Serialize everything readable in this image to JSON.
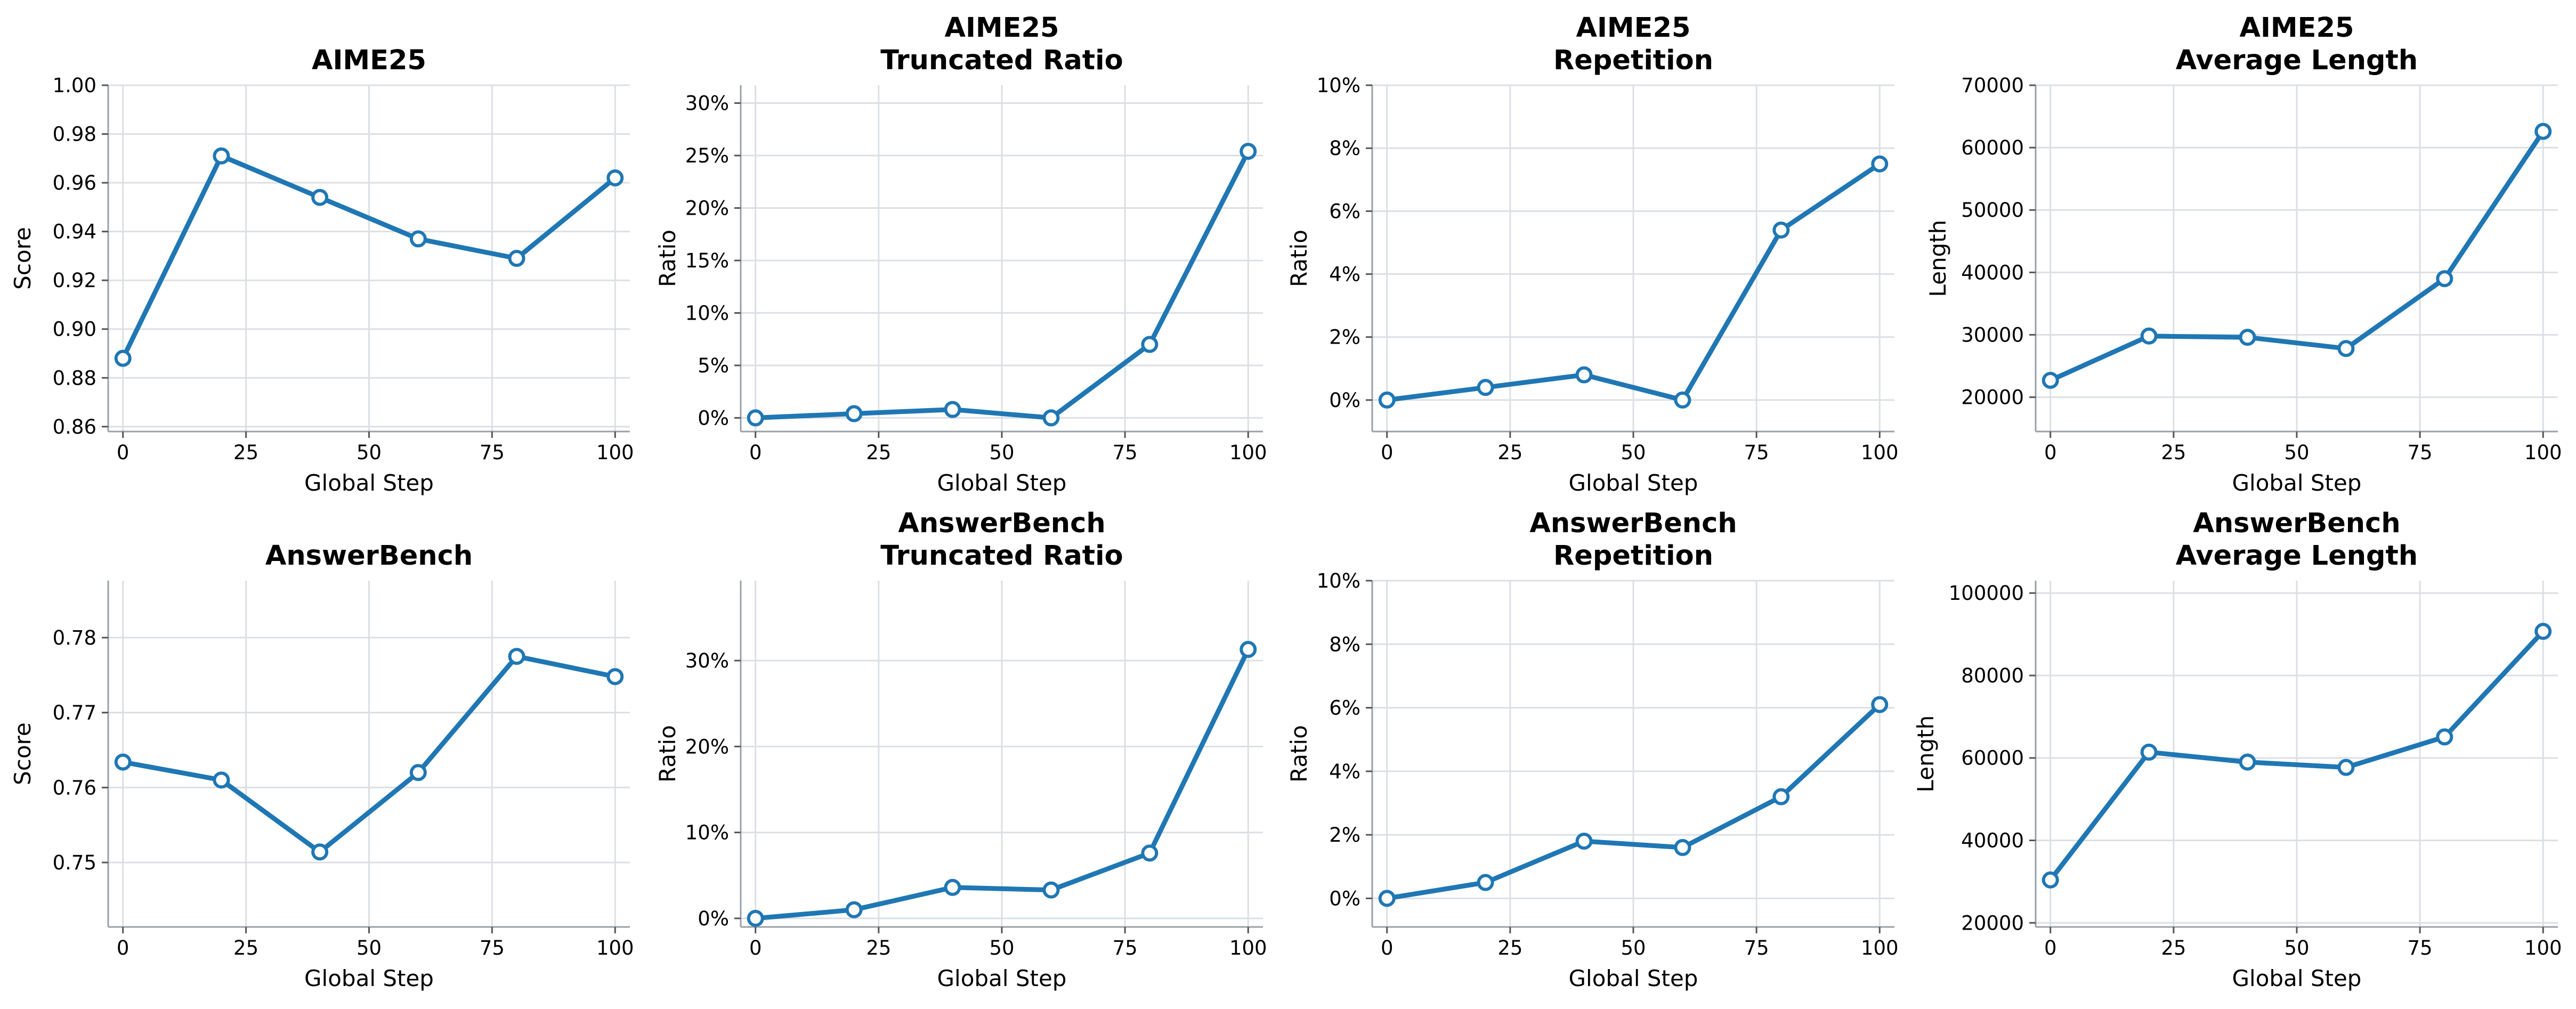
{
  "colors": {
    "series": "#1f77b4"
  },
  "chart_data": [
    {
      "type": "line",
      "title": [
        "AIME25"
      ],
      "xlabel": "Global Step",
      "ylabel": "Score",
      "x": [
        0,
        20,
        40,
        60,
        80,
        100
      ],
      "values": [
        0.888,
        0.971,
        0.954,
        0.937,
        0.929,
        0.962
      ],
      "xlim": [
        -3,
        103
      ],
      "ylim": [
        0.858,
        1.0
      ],
      "xticks": [
        0,
        25,
        50,
        75,
        100
      ],
      "xtick_labels": [
        "0",
        "25",
        "50",
        "75",
        "100"
      ],
      "yticks": [
        0.86,
        0.88,
        0.9,
        0.92,
        0.94,
        0.96,
        0.98,
        1.0
      ],
      "ytick_labels": [
        "0.86",
        "0.88",
        "0.90",
        "0.92",
        "0.94",
        "0.96",
        "0.98",
        "1.00"
      ],
      "grid": true
    },
    {
      "type": "line",
      "title": [
        "AIME25",
        "Truncated Ratio"
      ],
      "xlabel": "Global Step",
      "ylabel": "Ratio",
      "x": [
        0,
        20,
        40,
        60,
        80,
        100
      ],
      "values": [
        0.0,
        0.4,
        0.8,
        0.0,
        7.0,
        25.4
      ],
      "xlim": [
        -3,
        103
      ],
      "ylim": [
        -1.3,
        31.7
      ],
      "xticks": [
        0,
        25,
        50,
        75,
        100
      ],
      "xtick_labels": [
        "0",
        "25",
        "50",
        "75",
        "100"
      ],
      "yticks": [
        0,
        5,
        10,
        15,
        20,
        25,
        30
      ],
      "ytick_labels": [
        "0%",
        "5%",
        "10%",
        "15%",
        "20%",
        "25%",
        "30%"
      ],
      "grid": true
    },
    {
      "type": "line",
      "title": [
        "AIME25",
        "Repetition"
      ],
      "xlabel": "Global Step",
      "ylabel": "Ratio",
      "x": [
        0,
        20,
        40,
        60,
        80,
        100
      ],
      "values": [
        0.0,
        0.4,
        0.8,
        0.0,
        5.4,
        7.5
      ],
      "xlim": [
        -3,
        103
      ],
      "ylim": [
        -1.0,
        10.0
      ],
      "xticks": [
        0,
        25,
        50,
        75,
        100
      ],
      "xtick_labels": [
        "0",
        "25",
        "50",
        "75",
        "100"
      ],
      "yticks": [
        0,
        2,
        4,
        6,
        8,
        10
      ],
      "ytick_labels": [
        "0%",
        "2%",
        "4%",
        "6%",
        "8%",
        "10%"
      ],
      "grid": true
    },
    {
      "type": "line",
      "title": [
        "AIME25",
        "Average Length"
      ],
      "xlabel": "Global Step",
      "ylabel": "Length",
      "x": [
        0,
        20,
        40,
        60,
        80,
        100
      ],
      "values": [
        22700,
        29800,
        29600,
        27800,
        39000,
        62600
      ],
      "xlim": [
        -3,
        103
      ],
      "ylim": [
        14500,
        70000
      ],
      "xticks": [
        0,
        25,
        50,
        75,
        100
      ],
      "xtick_labels": [
        "0",
        "25",
        "50",
        "75",
        "100"
      ],
      "yticks": [
        20000,
        30000,
        40000,
        50000,
        60000,
        70000
      ],
      "ytick_labels": [
        "20000",
        "30000",
        "40000",
        "50000",
        "60000",
        "70000"
      ],
      "grid": true
    },
    {
      "type": "line",
      "title": [
        "AnswerBench"
      ],
      "xlabel": "Global Step",
      "ylabel": "Score",
      "x": [
        0,
        20,
        40,
        60,
        80,
        100
      ],
      "values": [
        0.7634,
        0.761,
        0.7514,
        0.762,
        0.7775,
        0.7748
      ],
      "xlim": [
        -3,
        103
      ],
      "ylim": [
        0.7414,
        0.7876
      ],
      "xticks": [
        0,
        25,
        50,
        75,
        100
      ],
      "xtick_labels": [
        "0",
        "25",
        "50",
        "75",
        "100"
      ],
      "yticks": [
        0.75,
        0.76,
        0.77,
        0.78
      ],
      "ytick_labels": [
        "0.75",
        "0.76",
        "0.77",
        "0.78"
      ],
      "grid": true
    },
    {
      "type": "line",
      "title": [
        "AnswerBench",
        "Truncated Ratio"
      ],
      "xlabel": "Global Step",
      "ylabel": "Ratio",
      "x": [
        0,
        20,
        40,
        60,
        80,
        100
      ],
      "values": [
        0.0,
        1.0,
        3.6,
        3.3,
        7.6,
        31.3
      ],
      "xlim": [
        -3,
        103
      ],
      "ylim": [
        -1.0,
        39.3
      ],
      "xticks": [
        0,
        25,
        50,
        75,
        100
      ],
      "xtick_labels": [
        "0",
        "25",
        "50",
        "75",
        "100"
      ],
      "yticks": [
        0,
        10,
        20,
        30
      ],
      "ytick_labels": [
        "0%",
        "10%",
        "20%",
        "30%"
      ],
      "grid": true
    },
    {
      "type": "line",
      "title": [
        "AnswerBench",
        "Repetition"
      ],
      "xlabel": "Global Step",
      "ylabel": "Ratio",
      "x": [
        0,
        20,
        40,
        60,
        80,
        100
      ],
      "values": [
        0.0,
        0.5,
        1.8,
        1.6,
        3.2,
        6.1
      ],
      "xlim": [
        -3,
        103
      ],
      "ylim": [
        -0.9,
        10.0
      ],
      "xticks": [
        0,
        25,
        50,
        75,
        100
      ],
      "xtick_labels": [
        "0",
        "25",
        "50",
        "75",
        "100"
      ],
      "yticks": [
        0,
        2,
        4,
        6,
        8,
        10
      ],
      "ytick_labels": [
        "0%",
        "2%",
        "4%",
        "6%",
        "8%",
        "10%"
      ],
      "grid": true
    },
    {
      "type": "line",
      "title": [
        "AnswerBench",
        "Average Length"
      ],
      "xlabel": "Global Step",
      "ylabel": "Length",
      "x": [
        0,
        20,
        40,
        60,
        80,
        100
      ],
      "values": [
        30400,
        61400,
        59000,
        57700,
        65100,
        90700
      ],
      "xlim": [
        -3,
        103
      ],
      "ylim": [
        19000,
        103000
      ],
      "xticks": [
        0,
        25,
        50,
        75,
        100
      ],
      "xtick_labels": [
        "0",
        "25",
        "50",
        "75",
        "100"
      ],
      "yticks": [
        20000,
        40000,
        60000,
        80000,
        100000
      ],
      "ytick_labels": [
        "20000",
        "40000",
        "60000",
        "80000",
        "100000"
      ],
      "grid": true
    }
  ]
}
